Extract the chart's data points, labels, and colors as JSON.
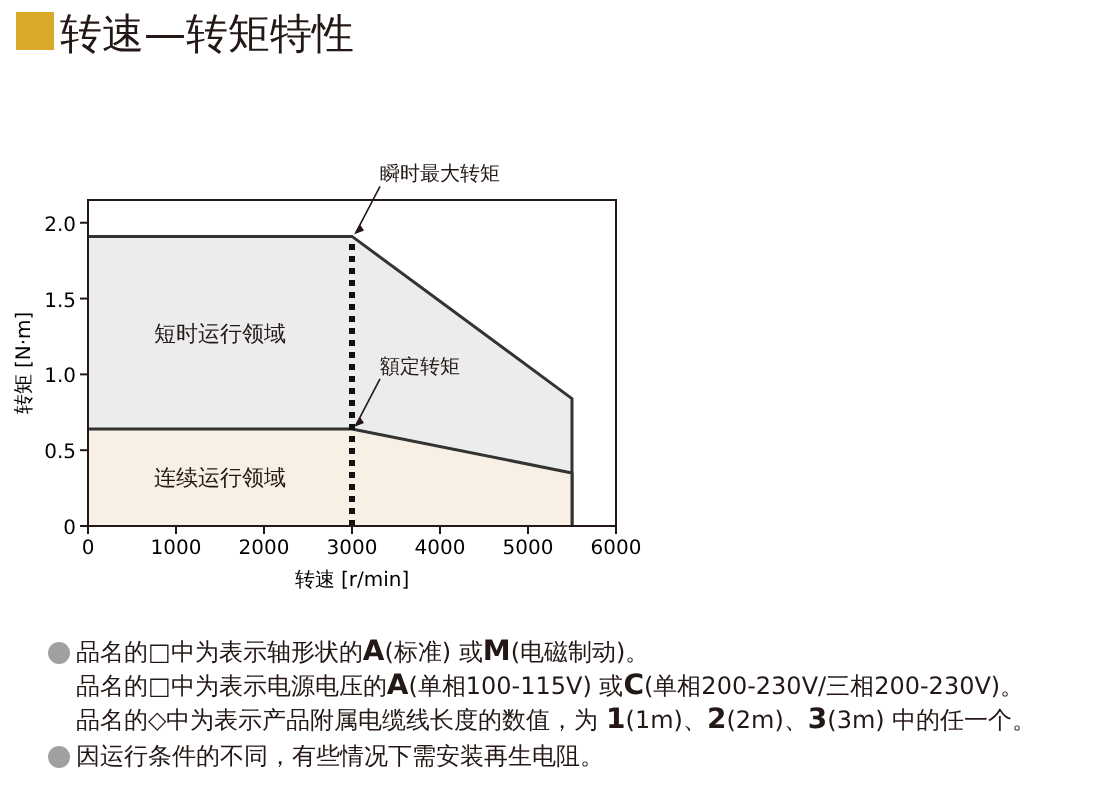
{
  "chart_data": {
    "type": "area",
    "title": "转速—转矩特性",
    "xlabel": "转速 [r/min]",
    "ylabel": "转矩 [N·m]",
    "xlim": [
      0,
      6000
    ],
    "ylim": [
      0,
      2.15
    ],
    "xticks": [
      0,
      1000,
      2000,
      3000,
      4000,
      5000,
      6000
    ],
    "yticks": [
      0,
      {
        "value": 0.5,
        "label": "0.5"
      },
      {
        "value": 1,
        "label": "1.0"
      },
      {
        "value": 1.5,
        "label": "1.5"
      },
      {
        "value": 2,
        "label": "2.0"
      }
    ],
    "x": [
      0,
      3000,
      5500
    ],
    "series": [
      {
        "name": "短时运行领域",
        "color": "#ececec",
        "values": [
          1.91,
          1.91,
          0.84
        ]
      },
      {
        "name": "连续运行领域",
        "color": "#f8efe5",
        "values": [
          0.64,
          0.64,
          0.35
        ]
      }
    ],
    "ref_lines": [
      {
        "axis": "x",
        "value": 3000,
        "line_style": "dotted",
        "color": "#111111"
      }
    ],
    "grid": false,
    "annotations": [
      {
        "text": "瞬时最大转矩",
        "x": 3000,
        "y": 1.91
      },
      {
        "text": "額定转矩",
        "x": 3000,
        "y": 0.64
      },
      "品名的□中为表示轴形状的**A**(标准) 或**M**(电磁制动)。品名的□中为表示电源电压的**A**(单相100-115V) 或**C**(单相200-230V/三相200-230V)。品名的◇中为表示产品附属电缆线长度的数值，为 **1**(1m)、**2**(2m)、**3**(3m) 中的任一个。",
      "因运行条件的不同，有些情况下需安装再生电阻。"
    ]
  }
}
